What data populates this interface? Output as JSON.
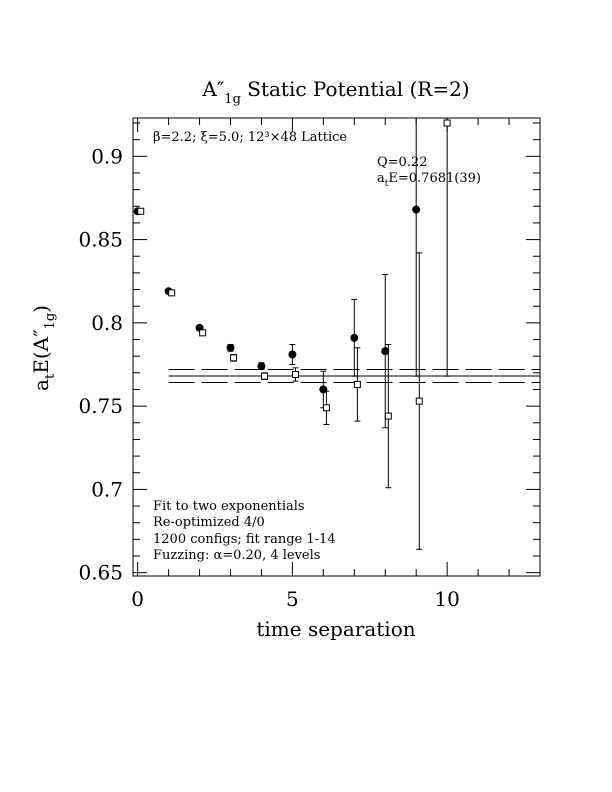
{
  "chart_data": {
    "type": "scatter",
    "title": "A″1g Static Potential (R=2)",
    "title_parts": {
      "base": "A″",
      "sub": "1g",
      "rest": " Static Potential (R=2)"
    },
    "xlabel": "time separation",
    "ylabel": "atE(A″1g)",
    "ylabel_parts": {
      "a": "a",
      "a_sub": "t",
      "mid": "E(A″",
      "sub2": "1g",
      "end": ")"
    },
    "xlim": [
      -0.15,
      13
    ],
    "ylim": [
      0.648,
      0.923
    ],
    "x_ticks": [
      0,
      5,
      10
    ],
    "x_tick_labels": [
      "0",
      "5",
      "10"
    ],
    "y_ticks": [
      0.65,
      0.7,
      0.75,
      0.8,
      0.85,
      0.9
    ],
    "y_tick_labels": [
      "0.65",
      "0.7",
      "0.75",
      "0.8",
      "0.85",
      "0.9"
    ],
    "lattice_label": "β=2.2; ξ=5.0; 12³×48 Lattice",
    "fit_info": {
      "q": "Q=0.22",
      "energy": "atE=0.7681(39)",
      "energy_prefix": "a",
      "energy_sub": "t",
      "energy_rest": "E=0.7681(39)"
    },
    "notes": [
      "Fit to two exponentials",
      "Re-optimized 4/0",
      "1200 configs; fit range 1-14",
      "Fuzzing: α=0.20, 4 levels"
    ],
    "fit_band": {
      "central": 0.7681,
      "lower": 0.7642,
      "upper": 0.772,
      "x_start": 1,
      "x_end": 13
    },
    "series": [
      {
        "marker": "filled-circle",
        "x": [
          0,
          1,
          2,
          3,
          4,
          5,
          6,
          7,
          8,
          9
        ],
        "y": [
          0.867,
          0.819,
          0.797,
          0.785,
          0.774,
          0.781,
          0.76,
          0.791,
          0.783,
          0.868
        ],
        "err": [
          0.001,
          0.001,
          0.001,
          0.002,
          0.002,
          0.006,
          0.011,
          0.023,
          0.046,
          0.1
        ]
      },
      {
        "marker": "open-square",
        "x": [
          0.1,
          1.1,
          2.1,
          3.1,
          4.1,
          5.1,
          6.1,
          7.1,
          8.1,
          9.1,
          10
        ],
        "y": [
          0.867,
          0.818,
          0.794,
          0.779,
          0.768,
          0.769,
          0.749,
          0.763,
          0.744,
          0.753,
          0.92
        ],
        "err": [
          0.001,
          0.001,
          0.001,
          0.002,
          0.002,
          0.004,
          0.01,
          0.022,
          0.043,
          0.089,
          0.152
        ]
      }
    ]
  }
}
